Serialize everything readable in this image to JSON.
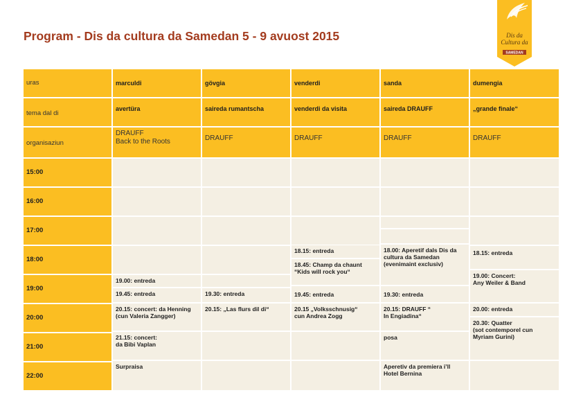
{
  "title": "Program - Dis da cultura da Samedan 5 - 9 avuost 2015",
  "logo": {
    "icon": "logo-emblem",
    "text": "Dis da cultura da",
    "subtext": "SAMEDAN"
  },
  "colors": {
    "yellow": "#fbbe22",
    "cream": "#f4efe3",
    "title": "#a33b1e"
  },
  "header": {
    "uras": "uras",
    "days": [
      "marculdi",
      "gövgia",
      "venderdi",
      "sanda",
      "dumengia"
    ],
    "tema_label": "tema dal di",
    "temas": [
      "avertüra",
      "saireda rumantscha",
      "venderdi da visita",
      "saireda DRAUFF",
      "„grande finale“"
    ],
    "org_label": "organisaziun",
    "orgs": [
      "DRAUFF\nBack to the Roots",
      "DRAUFF",
      "DRAUFF",
      "DRAUFF",
      "DRAUFF"
    ]
  },
  "times": [
    "15:00",
    "16:00",
    "17:00",
    "18:00",
    "19:00",
    "20:00",
    "21:00",
    "22:00"
  ],
  "events": {
    "marculdi": [
      "19.00: entreda",
      "19.45: entreda",
      "20.15: concert: da Henning\n(cun Valeria Zangger)",
      "21.15: concert:\nda Bibi Vaplan",
      "Surpraisa"
    ],
    "govgia": [
      "19.30: entreda",
      "20.15: „Las flurs dil di“"
    ],
    "venderdi": [
      "18.15: entreda",
      "18.45: Champ da chaunt\n“Kids will rock you“",
      "19.45: entreda",
      "20.15 „Volksschnusig“\ncun Andrea Zogg"
    ],
    "sanda": [
      "18.00: Aperetif dals Dis da\ncultura da Samedan\n(evenimaint exclusiv)",
      "19.30: entreda",
      "20.15: DRAUFF “\nIn Engiadina“",
      "posa",
      "Aperetiv da premiera i’ll\nHotel Bernina"
    ],
    "dumengia": [
      "18.15: entreda",
      "19.00: Concert:\nAny Weiler & Band",
      "20.00: entreda",
      "20.30: Quatter\n(sot contemporel cun\nMyriam Gurini)"
    ]
  }
}
